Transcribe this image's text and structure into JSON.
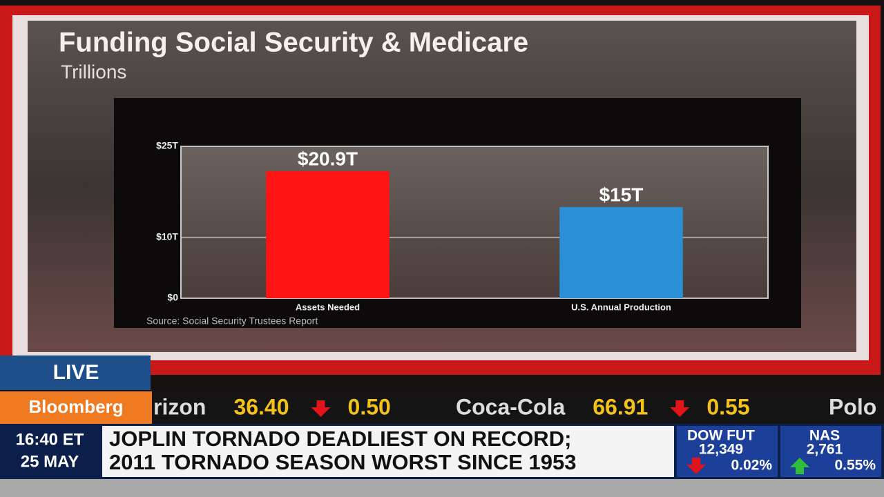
{
  "chart_data": {
    "type": "bar",
    "title": "Funding Social Security & Medicare",
    "subtitle": "Trillions",
    "categories": [
      "Assets Needed",
      "U.S. Annual Production"
    ],
    "values": [
      20.9,
      15
    ],
    "value_labels": [
      "$20.9T",
      "$15T"
    ],
    "colors": [
      "#ff1414",
      "#2b8fd6"
    ],
    "ylim": [
      0,
      25
    ],
    "yticks": [
      {
        "value": 0,
        "label": "$0"
      },
      {
        "value": 10,
        "label": "$10T"
      },
      {
        "value": 25,
        "label": "$25T"
      }
    ],
    "grid": true,
    "source": "Source: Social Security Trustees Report"
  },
  "broadcast": {
    "live": "LIVE",
    "brand": "Bloomberg",
    "ticker": [
      {
        "name": "rizon",
        "price": "36.40",
        "change": "0.50",
        "direction": "down"
      },
      {
        "name": "Coca-Cola",
        "price": "66.91",
        "change": "0.55",
        "direction": "down"
      },
      {
        "name": "Polo"
      }
    ],
    "time": "16:40 ET",
    "date": "25 MAY",
    "headline": [
      "JOPLIN TORNADO DEADLIEST ON RECORD;",
      "2011 TORNADO SEASON WORST SINCE 1953"
    ],
    "indices": [
      {
        "name": "DOW FUT",
        "value": "12,349",
        "change": "0.02%",
        "direction": "down"
      },
      {
        "name": "NAS",
        "value": "2,761",
        "change": "0.55%",
        "direction": "up"
      }
    ]
  }
}
